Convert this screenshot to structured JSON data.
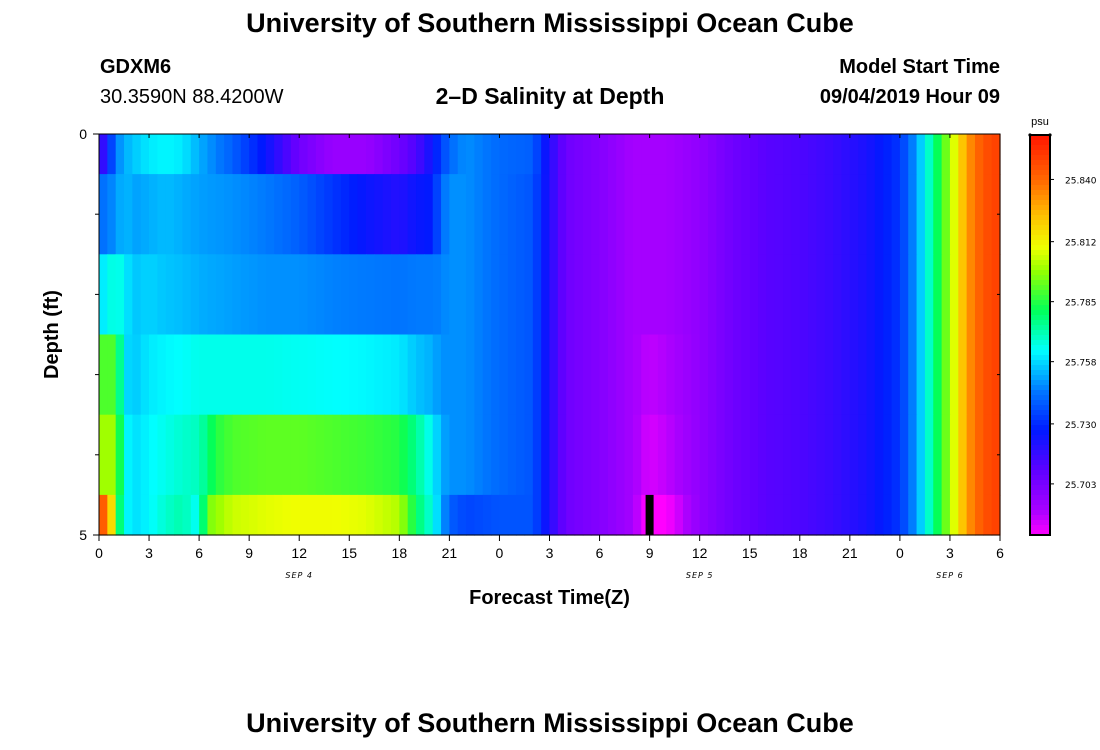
{
  "header": {
    "title": "University of Southern Mississippi Ocean Cube",
    "station_id": "GDXM6",
    "coordinates": "30.3590N 88.4200W",
    "plot_title": "2–D Salinity at Depth",
    "model_start_label": "Model Start Time",
    "model_start_value": "09/04/2019 Hour 09"
  },
  "footer": {
    "title": "University of Southern Mississippi Ocean Cube"
  },
  "chart_data": {
    "type": "heatmap",
    "title": "2–D Salinity at Depth",
    "xlabel": "Forecast Time(Z)",
    "ylabel": "Depth (ft)",
    "x_hours_range": [
      0,
      54
    ],
    "x_tick_labels": [
      "0",
      "3",
      "6",
      "9",
      "12",
      "15",
      "18",
      "21",
      "0",
      "3",
      "6",
      "9",
      "12",
      "15",
      "18",
      "21",
      "0",
      "3",
      "6"
    ],
    "date_labels": [
      {
        "label": "SEP 4",
        "hour": 12
      },
      {
        "label": "SEP 5",
        "hour": 36
      },
      {
        "label": "SEP 6",
        "hour": 51
      }
    ],
    "y_range": [
      0,
      5
    ],
    "y_tick_labels": [
      {
        "label": "0",
        "value": 0
      },
      {
        "label": "5",
        "value": 5
      }
    ],
    "y_minor_ticks": [
      1,
      2,
      3,
      4
    ],
    "depth_layers": [
      0,
      1,
      2,
      3,
      4
    ],
    "units": "psu",
    "colorbar_ticks": [
      "25.840",
      "25.812",
      "25.785",
      "25.758",
      "25.730",
      "25.703"
    ],
    "colorbar_tick_values": [
      25.84,
      25.812,
      25.785,
      25.758,
      25.73,
      25.703
    ],
    "color_range": [
      25.68,
      25.86
    ],
    "current_time_marker_hour": 33,
    "salinity_psu": [
      {
        "depth_layer": 0,
        "hours": [
          0,
          0.5,
          1,
          1.5,
          2,
          3,
          4,
          5,
          6,
          8,
          10,
          12,
          14,
          16,
          18,
          19,
          20,
          21,
          22,
          24,
          26,
          27,
          28,
          30,
          32,
          34,
          36,
          38,
          40,
          42,
          44,
          46,
          48,
          49,
          50,
          51,
          52,
          53,
          54
        ],
        "values": [
          25.71,
          25.725,
          25.745,
          25.752,
          25.755,
          25.76,
          25.762,
          25.76,
          25.752,
          25.74,
          25.725,
          25.705,
          25.695,
          25.695,
          25.705,
          25.712,
          25.725,
          25.742,
          25.748,
          25.742,
          25.74,
          25.72,
          25.705,
          25.7,
          25.692,
          25.692,
          25.697,
          25.705,
          25.71,
          25.712,
          25.716,
          25.722,
          25.732,
          25.75,
          25.775,
          25.8,
          25.83,
          25.845,
          25.85
        ]
      },
      {
        "depth_layer": 1,
        "hours": [
          0,
          1,
          1.5,
          2,
          3,
          4,
          5,
          6,
          8,
          10,
          12,
          14,
          16,
          18,
          19,
          20,
          20.5,
          21,
          22,
          24,
          26,
          27,
          28,
          30,
          32,
          34,
          36,
          38,
          40,
          42,
          44,
          46,
          48,
          49,
          50,
          51,
          52,
          53,
          54
        ],
        "values": [
          25.742,
          25.748,
          25.755,
          25.75,
          25.752,
          25.754,
          25.752,
          25.75,
          25.748,
          25.745,
          25.74,
          25.732,
          25.725,
          25.72,
          25.725,
          25.727,
          25.742,
          25.748,
          25.748,
          25.742,
          25.738,
          25.72,
          25.705,
          25.7,
          25.692,
          25.692,
          25.697,
          25.705,
          25.71,
          25.712,
          25.716,
          25.722,
          25.732,
          25.75,
          25.775,
          25.8,
          25.83,
          25.845,
          25.85
        ]
      },
      {
        "depth_layer": 2,
        "hours": [
          0,
          1,
          1.5,
          2,
          3,
          4,
          5,
          6,
          8,
          10,
          12,
          14,
          16,
          18,
          19,
          20,
          20.5,
          21,
          22,
          24,
          26,
          27,
          28,
          30,
          32,
          34,
          36,
          38,
          40,
          42,
          44,
          46,
          48,
          49,
          50,
          51,
          52,
          53,
          54
        ],
        "values": [
          25.758,
          25.768,
          25.762,
          25.755,
          25.757,
          25.755,
          25.754,
          25.752,
          25.75,
          25.748,
          25.748,
          25.746,
          25.745,
          25.744,
          25.745,
          25.745,
          25.746,
          25.748,
          25.748,
          25.742,
          25.738,
          25.72,
          25.705,
          25.7,
          25.692,
          25.692,
          25.697,
          25.705,
          25.71,
          25.712,
          25.716,
          25.722,
          25.732,
          25.75,
          25.775,
          25.8,
          25.83,
          25.845,
          25.85
        ]
      },
      {
        "depth_layer": 3,
        "hours": [
          0,
          1,
          1.5,
          2,
          3,
          4,
          5,
          6,
          8,
          10,
          12,
          14,
          16,
          18,
          19,
          20,
          20.5,
          21,
          22,
          24,
          26,
          27,
          28,
          30,
          32,
          33,
          34,
          36,
          38,
          40,
          42,
          44,
          46,
          48,
          49,
          50,
          51,
          52,
          53,
          54
        ],
        "values": [
          25.79,
          25.79,
          25.76,
          25.755,
          25.76,
          25.762,
          25.763,
          25.765,
          25.765,
          25.765,
          25.764,
          25.763,
          25.762,
          25.76,
          25.755,
          25.752,
          25.748,
          25.748,
          25.748,
          25.742,
          25.738,
          25.72,
          25.705,
          25.7,
          25.692,
          25.688,
          25.69,
          25.697,
          25.705,
          25.71,
          25.712,
          25.716,
          25.722,
          25.732,
          25.75,
          25.775,
          25.8,
          25.83,
          25.845,
          25.85
        ]
      },
      {
        "depth_layer": 4,
        "hours": [
          0,
          1,
          1.5,
          2,
          3,
          4,
          5,
          6,
          7,
          8,
          10,
          12,
          14,
          16,
          18,
          19,
          20,
          20.5,
          21,
          22,
          24,
          26,
          27,
          28,
          30,
          32,
          33,
          34,
          36,
          38,
          40,
          42,
          44,
          46,
          48,
          49,
          50,
          51,
          52,
          53,
          54
        ],
        "values": [
          25.8,
          25.8,
          25.765,
          25.758,
          25.762,
          25.765,
          25.768,
          25.77,
          25.785,
          25.79,
          25.792,
          25.792,
          25.79,
          25.788,
          25.785,
          25.775,
          25.762,
          25.752,
          25.748,
          25.748,
          25.742,
          25.738,
          25.72,
          25.705,
          25.7,
          25.692,
          25.685,
          25.688,
          25.697,
          25.705,
          25.71,
          25.712,
          25.716,
          25.722,
          25.732,
          25.75,
          25.775,
          25.8,
          25.83,
          25.845,
          25.85
        ]
      },
      {
        "depth_layer": 5,
        "hours": [
          0,
          0.5,
          1,
          1.5,
          2,
          3,
          4,
          5,
          6,
          6.5,
          8,
          10,
          12,
          14,
          16,
          18,
          19,
          20,
          20.5,
          21,
          22,
          24,
          26,
          27,
          28,
          30,
          32,
          33,
          34,
          36,
          38,
          40,
          42,
          44,
          46,
          48,
          49,
          50,
          51,
          52,
          53,
          54
        ],
        "values": [
          25.84,
          25.845,
          25.79,
          25.765,
          25.758,
          25.762,
          25.768,
          25.772,
          25.762,
          25.795,
          25.805,
          25.808,
          25.81,
          25.81,
          25.808,
          25.802,
          25.78,
          25.765,
          25.752,
          25.74,
          25.735,
          25.738,
          25.738,
          25.72,
          25.705,
          25.7,
          25.692,
          25.678,
          25.68,
          25.697,
          25.705,
          25.71,
          25.712,
          25.716,
          25.722,
          25.732,
          25.75,
          25.775,
          25.8,
          25.83,
          25.845,
          25.85
        ]
      }
    ]
  }
}
